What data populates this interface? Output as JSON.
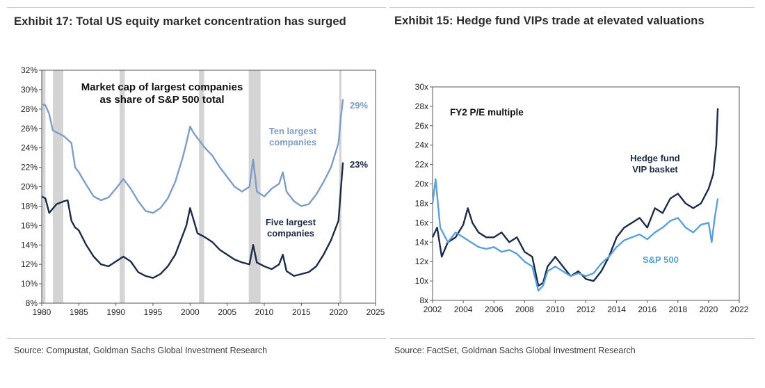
{
  "chart_data": [
    {
      "type": "line",
      "exhibit_title": "Exhibit 17: Total US equity market concentration has surged",
      "annotation": "Market cap of largest companies\nas share of S&P 500 total",
      "source": "Source: Compustat, Goldman Sachs Global Investment Research",
      "x_ticks": [
        "1980",
        "1985",
        "1990",
        "1995",
        "2000",
        "2005",
        "2010",
        "2015",
        "2020",
        "2025"
      ],
      "y_ticks": [
        "8%",
        "10%",
        "12%",
        "14%",
        "16%",
        "18%",
        "20%",
        "22%",
        "24%",
        "26%",
        "28%",
        "30%",
        "32%"
      ],
      "xlim": [
        1980,
        2025
      ],
      "ylim": [
        8,
        32
      ],
      "shaded_periods": [
        [
          1980.0,
          1980.5
        ],
        [
          1981.5,
          1982.9
        ],
        [
          1990.5,
          1991.2
        ],
        [
          2001.2,
          2001.9
        ],
        [
          2007.9,
          2009.5
        ],
        [
          2020.1,
          2020.4
        ]
      ],
      "series": [
        {
          "name": "Ten largest\ncompanies",
          "end_label": "29%",
          "color": "#7d9dc7",
          "x": [
            1980,
            1980.5,
            1981,
            1981.5,
            1982,
            1982.5,
            1983,
            1984,
            1984.5,
            1985,
            1986,
            1987,
            1988,
            1989,
            1990,
            1991,
            1992,
            1993,
            1994,
            1995,
            1996,
            1997,
            1998,
            1999,
            1999.5,
            2000,
            2000.5,
            2001,
            2002,
            2003,
            2004,
            2005,
            2006,
            2007,
            2008,
            2008.5,
            2009,
            2010,
            2011,
            2012,
            2012.5,
            2013,
            2014,
            2015,
            2016,
            2017,
            2018,
            2019,
            2020,
            2020.3,
            2020.6
          ],
          "y": [
            28.5,
            28.4,
            27.5,
            25.8,
            25.6,
            25.4,
            25.2,
            24.5,
            22.0,
            21.5,
            20.2,
            19.0,
            18.6,
            18.9,
            19.8,
            20.8,
            19.8,
            18.5,
            17.5,
            17.3,
            17.8,
            18.8,
            20.5,
            23.0,
            24.5,
            26.2,
            25.5,
            25.0,
            24.0,
            23.2,
            22.0,
            21.0,
            20.0,
            19.5,
            20.0,
            22.8,
            19.5,
            19.0,
            19.8,
            20.3,
            21.5,
            19.5,
            18.5,
            18.0,
            18.2,
            19.2,
            20.5,
            22.0,
            24.5,
            27.0,
            29.0
          ]
        },
        {
          "name": "Five largest\ncompanies",
          "end_label": "23%",
          "color": "#1b2a47",
          "x": [
            1980,
            1980.5,
            1981,
            1982,
            1983,
            1983.5,
            1984,
            1984.5,
            1985,
            1986,
            1987,
            1988,
            1989,
            1990,
            1991,
            1992,
            1993,
            1994,
            1995,
            1996,
            1997,
            1998,
            1999,
            1999.5,
            2000,
            2000.5,
            2001,
            2002,
            2003,
            2004,
            2005,
            2006,
            2007,
            2008,
            2008.5,
            2009,
            2010,
            2011,
            2012,
            2012.5,
            2013,
            2014,
            2015,
            2016,
            2017,
            2018,
            2019,
            2020,
            2020.3,
            2020.6
          ],
          "y": [
            19.0,
            18.8,
            17.3,
            18.2,
            18.5,
            18.6,
            16.5,
            15.8,
            15.5,
            14.0,
            12.8,
            12.0,
            11.8,
            12.3,
            12.8,
            12.3,
            11.2,
            10.8,
            10.6,
            11.0,
            11.8,
            13.0,
            15.0,
            16.0,
            17.8,
            16.5,
            15.2,
            14.8,
            14.3,
            13.5,
            13.0,
            12.5,
            12.2,
            12.0,
            14.0,
            12.2,
            11.8,
            11.5,
            12.0,
            13.0,
            11.3,
            10.8,
            11.0,
            11.2,
            11.8,
            13.0,
            14.5,
            16.5,
            19.5,
            22.5
          ]
        }
      ]
    },
    {
      "type": "line",
      "exhibit_title": "Exhibit 15: Hedge fund VIPs trade at elevated valuations",
      "annotation": "FY2 P/E multiple",
      "source": "Source: FactSet, Goldman Sachs Global Investment Research",
      "x_ticks": [
        "2002",
        "2004",
        "2006",
        "2008",
        "2010",
        "2012",
        "2014",
        "2016",
        "2018",
        "2020",
        "2022"
      ],
      "y_ticks": [
        "8x",
        "10x",
        "12x",
        "14x",
        "16x",
        "18x",
        "20x",
        "22x",
        "24x",
        "26x",
        "28x",
        "30x"
      ],
      "xlim": [
        2002,
        2022
      ],
      "ylim": [
        8,
        30
      ],
      "series": [
        {
          "name": "Hedge fund\nVIP basket",
          "color": "#1b2a47",
          "x": [
            2002,
            2002.3,
            2002.6,
            2003,
            2003.5,
            2004,
            2004.3,
            2004.6,
            2005,
            2005.5,
            2006,
            2006.5,
            2007,
            2007.5,
            2008,
            2008.5,
            2008.9,
            2009.2,
            2009.5,
            2010,
            2010.5,
            2011,
            2011.5,
            2012,
            2012.5,
            2013,
            2013.5,
            2014,
            2014.5,
            2015,
            2015.5,
            2016,
            2016.5,
            2017,
            2017.5,
            2018,
            2018.5,
            2019,
            2019.5,
            2020,
            2020.3,
            2020.5,
            2020.6
          ],
          "y": [
            14.5,
            15.5,
            12.5,
            14.0,
            14.5,
            15.8,
            17.5,
            16.0,
            15.0,
            14.5,
            14.5,
            15.0,
            14.0,
            14.5,
            13.0,
            12.5,
            9.5,
            9.8,
            11.5,
            12.5,
            11.5,
            10.5,
            11.0,
            10.2,
            10.0,
            11.0,
            12.5,
            14.5,
            15.5,
            16.0,
            16.5,
            15.5,
            17.5,
            17.0,
            18.5,
            19.0,
            18.0,
            17.5,
            18.0,
            19.5,
            21.0,
            24.0,
            27.8
          ]
        },
        {
          "name": "S&P 500",
          "color": "#5aa0db",
          "x": [
            2002,
            2002.2,
            2002.5,
            2003,
            2003.5,
            2004,
            2004.5,
            2005,
            2005.5,
            2006,
            2006.5,
            2007,
            2007.5,
            2008,
            2008.5,
            2008.9,
            2009.2,
            2009.5,
            2010,
            2010.5,
            2011,
            2011.5,
            2012,
            2012.5,
            2013,
            2013.5,
            2014,
            2014.5,
            2015,
            2015.5,
            2016,
            2016.5,
            2017,
            2017.5,
            2018,
            2018.5,
            2019,
            2019.5,
            2020,
            2020.2,
            2020.4,
            2020.6
          ],
          "y": [
            18.0,
            20.5,
            15.5,
            14.0,
            15.0,
            14.5,
            14.0,
            13.5,
            13.3,
            13.5,
            13.0,
            13.2,
            12.8,
            12.0,
            11.5,
            9.0,
            9.5,
            11.0,
            11.5,
            11.0,
            10.5,
            10.8,
            10.5,
            10.8,
            11.8,
            12.5,
            13.5,
            14.2,
            14.5,
            14.8,
            14.3,
            15.0,
            15.5,
            16.2,
            16.5,
            15.5,
            15.0,
            15.8,
            16.0,
            14.0,
            16.5,
            18.5
          ]
        }
      ]
    }
  ]
}
